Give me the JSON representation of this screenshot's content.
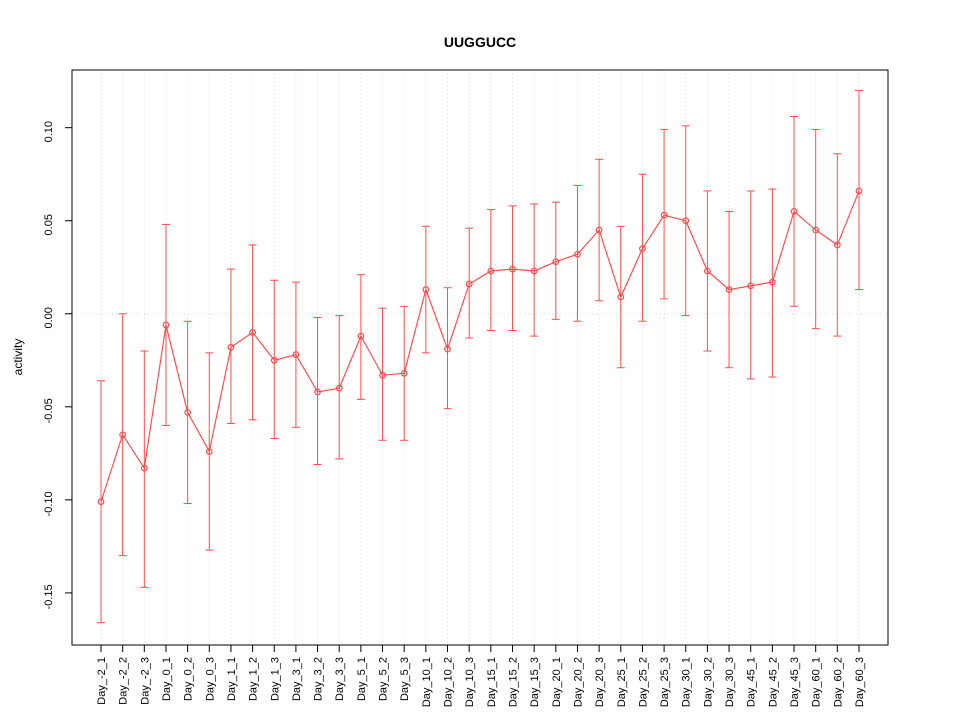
{
  "chart_data": {
    "type": "line",
    "title": "UUGGUCC",
    "ylabel": "activity",
    "xlabel": "",
    "error_bars": true,
    "legend": "none",
    "grid": "vertical-dotted",
    "zero_line": true,
    "ylim": [
      -0.178,
      0.131
    ],
    "yticks": [
      0.1,
      0.05,
      0.0,
      -0.05,
      -0.1,
      -0.15
    ],
    "ytick_labels": [
      "0.10",
      "0.05",
      "0.00",
      "-0.05",
      "-0.10",
      "-0.15"
    ],
    "categories": [
      "Day_-2_1",
      "Day_-2_2",
      "Day_-2_3",
      "Day_0_1",
      "Day_0_2",
      "Day_0_3",
      "Day_1_1",
      "Day_1_2",
      "Day_1_3",
      "Day_3_1",
      "Day_3_2",
      "Day_3_3",
      "Day_5_1",
      "Day_5_2",
      "Day_5_3",
      "Day_10_1",
      "Day_10_2",
      "Day_10_3",
      "Day_15_1",
      "Day_15_2",
      "Day_15_3",
      "Day_20_1",
      "Day_20_2",
      "Day_20_3",
      "Day_25_1",
      "Day_25_2",
      "Day_25_3",
      "Day_30_1",
      "Day_30_2",
      "Day_30_3",
      "Day_45_1",
      "Day_45_2",
      "Day_45_3",
      "Day_60_1",
      "Day_60_2",
      "Day_60_3"
    ],
    "series": [
      {
        "name": "activity",
        "means": [
          -0.101,
          -0.065,
          -0.083,
          -0.006,
          -0.053,
          -0.074,
          -0.018,
          -0.01,
          -0.025,
          -0.022,
          -0.042,
          -0.04,
          -0.012,
          -0.033,
          -0.032,
          0.013,
          -0.019,
          0.016,
          0.023,
          0.024,
          0.023,
          0.028,
          0.032,
          0.045,
          0.009,
          0.035,
          0.053,
          0.05,
          0.023,
          0.013,
          0.015,
          0.017,
          0.055,
          0.045,
          0.037,
          0.066
        ],
        "lower": [
          -0.166,
          -0.13,
          -0.147,
          -0.06,
          -0.102,
          -0.127,
          -0.059,
          -0.057,
          -0.067,
          -0.061,
          -0.081,
          -0.078,
          -0.046,
          -0.068,
          -0.068,
          -0.021,
          -0.051,
          -0.013,
          -0.009,
          -0.009,
          -0.012,
          -0.003,
          -0.004,
          0.007,
          -0.029,
          -0.004,
          0.008,
          -0.001,
          -0.02,
          -0.029,
          -0.035,
          -0.034,
          0.004,
          -0.008,
          -0.012,
          0.013
        ],
        "upper": [
          -0.036,
          0.0,
          -0.02,
          0.048,
          -0.004,
          -0.021,
          0.024,
          0.037,
          0.018,
          0.017,
          -0.002,
          -0.001,
          0.021,
          0.003,
          0.004,
          0.047,
          0.014,
          0.046,
          0.056,
          0.058,
          0.059,
          0.06,
          0.069,
          0.083,
          0.047,
          0.075,
          0.099,
          0.101,
          0.066,
          0.055,
          0.066,
          0.067,
          0.106,
          0.099,
          0.086,
          0.12
        ]
      }
    ],
    "colors": {
      "series": "#ff4d4d",
      "grid": "#d9d9d9",
      "zero_line": "#d9d9d9",
      "axis": "#000000",
      "background": "#ffffff"
    }
  }
}
